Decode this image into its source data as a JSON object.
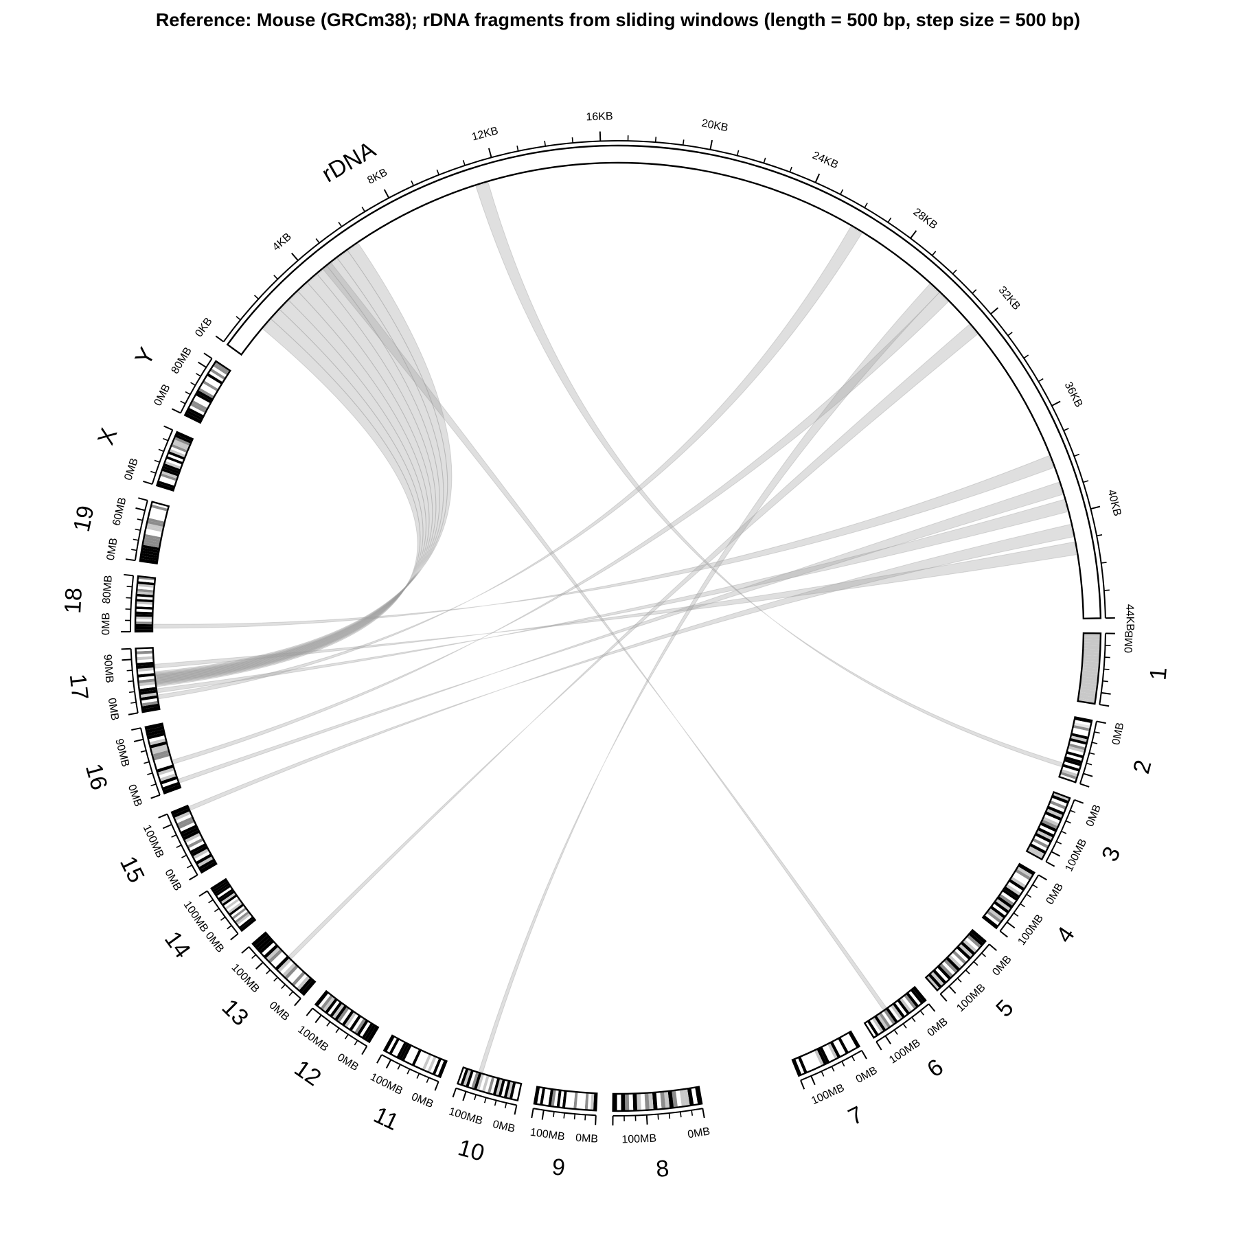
{
  "title": "Reference: Mouse (GRCm38); rDNA fragments from sliding windows (length = 500 bp, step size = 500 bp)",
  "colors": {
    "outline": "#000000",
    "band_dark": "#000000",
    "band_mid": "#8c8c8c",
    "band_light": "#c8c8c8",
    "band_faint": "#e6e6e6",
    "link": "#9a9a9a"
  },
  "segments": [
    {
      "name": "1",
      "tick_labels": [
        "0MB"
      ],
      "bands": "1111111111111111111111"
    },
    {
      "name": "2",
      "tick_labels": [
        "0MB"
      ],
      "bands": "30420031302103033030120"
    },
    {
      "name": "3",
      "tick_labels": [
        "0MB",
        "100MB"
      ],
      "bands": "1302031301230313020311"
    },
    {
      "name": "4",
      "tick_labels": [
        "0MB",
        "100MB"
      ],
      "bands": "3120013013302313031203"
    },
    {
      "name": "5",
      "tick_labels": [
        "0MB",
        "100MB"
      ],
      "bands": "3320131302013202303131"
    },
    {
      "name": "6",
      "tick_labels": [
        "0MB",
        "100MB"
      ],
      "bands": "3303201303103202131030"
    },
    {
      "name": "7",
      "tick_labels": [
        "0MB",
        "100MB"
      ],
      "bands": "3000300310033100000303"
    },
    {
      "name": "8",
      "tick_labels": [
        "0MB",
        "100MB"
      ],
      "bands": "3031102312031201302303"
    },
    {
      "name": "9",
      "tick_labels": [
        "0MB",
        "100MB"
      ],
      "bands": "3102000200030302300303"
    },
    {
      "name": "10",
      "tick_labels": [
        "0MB",
        "100MB"
      ],
      "bands": "0031303130201013203130"
    },
    {
      "name": "11",
      "tick_labels": [
        "0MB",
        "100MB"
      ],
      "bands": "3030101000300033300303"
    },
    {
      "name": "12",
      "tick_labels": [
        "0MB",
        "100MB"
      ],
      "bands": "3330320301302313031203"
    },
    {
      "name": "13",
      "tick_labels": [
        "0MB",
        "100MB"
      ],
      "bands": "3310200210130021303333"
    },
    {
      "name": "14",
      "tick_labels": [
        "0MB",
        "100MB"
      ],
      "bands": "3301202031010313303333"
    },
    {
      "name": "15",
      "tick_labels": [
        "0MB",
        "100MB"
      ],
      "bands": "3313013302013330220133"
    },
    {
      "name": "16",
      "tick_labels": [
        "0MB",
        "90MB"
      ],
      "bands": "3303101300022113103333"
    },
    {
      "name": "17",
      "tick_labels": [
        "0MB",
        "90MB"
      ],
      "bands": "3320313301203013301020"
    },
    {
      "name": "18",
      "tick_labels": [
        "0MB",
        "80MB"
      ],
      "bands": "3332013303013031201302"
    },
    {
      "name": "19",
      "tick_labels": [
        "0MB",
        "60MB"
      ],
      "bands": "3333332222001122000020"
    },
    {
      "name": "X",
      "tick_labels": [
        "0MB"
      ],
      "bands": "3300213331030310211233"
    },
    {
      "name": "Y",
      "tick_labels": [
        "0MB",
        "80MB"
      ],
      "bands": "3330220033200200302022"
    },
    {
      "name": "rDNA",
      "tick_labels": [
        "0KB",
        "4KB",
        "8KB",
        "12KB",
        "16KB",
        "20KB",
        "24KB",
        "28KB",
        "32KB",
        "36KB",
        "40KB",
        "44KB"
      ],
      "bands": ""
    }
  ],
  "links": [
    {
      "rdna_kb": [
        1.3,
        1.8
      ],
      "target": "17",
      "pos": 0.4
    },
    {
      "rdna_kb": [
        1.8,
        2.3
      ],
      "target": "17",
      "pos": 0.42
    },
    {
      "rdna_kb": [
        2.3,
        2.8
      ],
      "target": "17",
      "pos": 0.44
    },
    {
      "rdna_kb": [
        2.8,
        3.3
      ],
      "target": "17",
      "pos": 0.46
    },
    {
      "rdna_kb": [
        3.3,
        3.8
      ],
      "target": "17",
      "pos": 0.48
    },
    {
      "rdna_kb": [
        3.8,
        4.3
      ],
      "target": "17",
      "pos": 0.5
    },
    {
      "rdna_kb": [
        4.3,
        4.8
      ],
      "target": "17",
      "pos": 0.52
    },
    {
      "rdna_kb": [
        4.8,
        5.3
      ],
      "target": "17",
      "pos": 0.54
    },
    {
      "rdna_kb": [
        5.3,
        5.8
      ],
      "target": "17",
      "pos": 0.56
    },
    {
      "rdna_kb": [
        5.8,
        6.3
      ],
      "target": "17",
      "pos": 0.58
    },
    {
      "rdna_kb": [
        4.6,
        5.0
      ],
      "target": "6",
      "pos": 0.6
    },
    {
      "rdna_kb": [
        11.4,
        11.9
      ],
      "target": "2",
      "pos": 0.8
    },
    {
      "rdna_kb": [
        26.5,
        27.0
      ],
      "target": "17",
      "pos": 0.2
    },
    {
      "rdna_kb": [
        30.3,
        30.8
      ],
      "target": "10",
      "pos": 0.7
    },
    {
      "rdna_kb": [
        30.8,
        31.3
      ],
      "target": "16",
      "pos": 0.4
    },
    {
      "rdna_kb": [
        32.5,
        33.0
      ],
      "target": "13",
      "pos": 0.5
    },
    {
      "rdna_kb": [
        38.5,
        39.0
      ],
      "target": "18",
      "pos": 0.1
    },
    {
      "rdna_kb": [
        39.6,
        40.1
      ],
      "target": "16",
      "pos": 0.1
    },
    {
      "rdna_kb": [
        40.3,
        40.8
      ],
      "target": "17",
      "pos": 0.3
    },
    {
      "rdna_kb": [
        41.3,
        41.8
      ],
      "target": "15",
      "pos": 0.95
    },
    {
      "rdna_kb": [
        42.0,
        42.5
      ],
      "target": "17",
      "pos": 0.7
    }
  ]
}
